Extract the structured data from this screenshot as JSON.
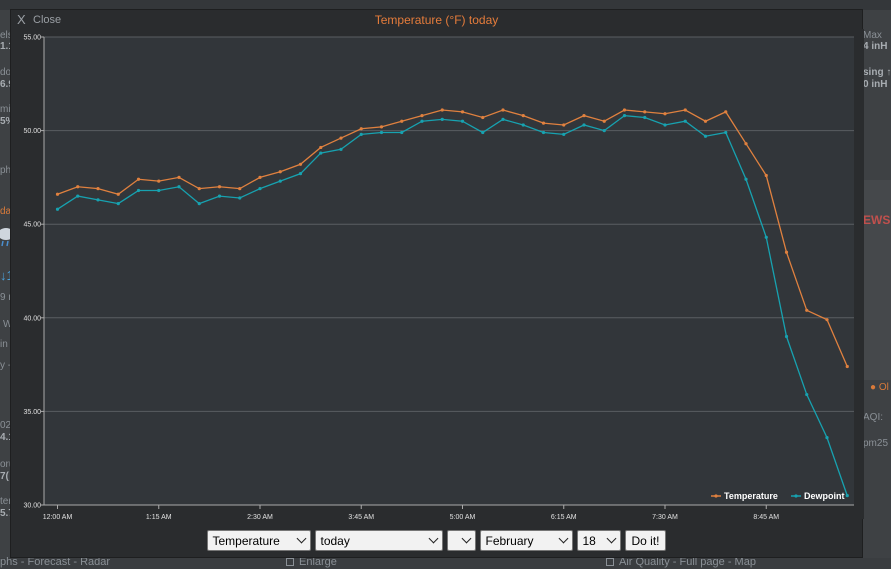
{
  "background": {
    "left_fragments": [
      "elsi",
      "1.1",
      "do",
      "6.9",
      "mi",
      "5%",
      "ph",
      "da",
      "↓1",
      "9 m",
      "W",
      "in 8",
      "y -",
      "02",
      "4.1",
      "oru",
      "7(",
      "ter",
      "5.7"
    ],
    "right_fragments": [
      "Max",
      "4 inH",
      "sing ↑",
      "0 inH",
      "EWS",
      "● Ol",
      "AQI:",
      "pm25"
    ],
    "bottom_links": [
      "phs - Forecast - Radar",
      "Enlarge",
      "Air Quality - Full page - Map"
    ]
  },
  "modal": {
    "close_x": "X",
    "close_label": "Close",
    "title": "Temperature (°F) today"
  },
  "chart_data": {
    "type": "line",
    "title": "Temperature (°F) today",
    "x_tick_labels": [
      "12:00 AM",
      "1:15 AM",
      "2:30 AM",
      "3:45 AM",
      "5:00 AM",
      "6:15 AM",
      "7:30 AM",
      "8:45 AM"
    ],
    "y_tick_labels": [
      "55.00",
      "50.00",
      "45.00",
      "40.00",
      "35.00",
      "30.00"
    ],
    "ylim": [
      30,
      55
    ],
    "x_range_minutes": [
      -10,
      590
    ],
    "x_minutes": [
      0,
      15,
      30,
      45,
      60,
      75,
      90,
      105,
      120,
      135,
      150,
      165,
      180,
      195,
      210,
      225,
      240,
      255,
      270,
      285,
      300,
      315,
      330,
      345,
      360,
      375,
      390,
      405,
      420,
      435,
      450,
      465,
      480,
      495,
      510,
      525,
      540,
      555,
      570,
      585
    ],
    "series": [
      {
        "name": "Temperature",
        "color": "#e0813f",
        "values": [
          46.6,
          47.0,
          46.9,
          46.6,
          47.4,
          47.3,
          47.5,
          46.9,
          47.0,
          46.9,
          47.5,
          47.8,
          48.2,
          49.1,
          49.6,
          50.1,
          50.2,
          50.5,
          50.8,
          51.1,
          51.0,
          50.7,
          51.1,
          50.8,
          50.4,
          50.3,
          50.8,
          50.5,
          51.1,
          51.0,
          50.9,
          51.1,
          50.5,
          51.0,
          49.3,
          47.6,
          43.5,
          40.4,
          39.9,
          37.4
        ]
      },
      {
        "name": "Dewpoint",
        "color": "#17a2b0",
        "values": [
          45.8,
          46.5,
          46.3,
          46.1,
          46.8,
          46.8,
          47.0,
          46.1,
          46.5,
          46.4,
          46.9,
          47.3,
          47.7,
          48.8,
          49.0,
          49.8,
          49.9,
          49.9,
          50.5,
          50.6,
          50.5,
          49.9,
          50.6,
          50.3,
          49.9,
          49.8,
          50.3,
          50.0,
          50.8,
          50.7,
          50.3,
          50.5,
          49.7,
          49.9,
          47.4,
          44.3,
          39.0,
          35.9,
          33.6,
          30.5
        ]
      }
    ],
    "grid": true,
    "legend_position": "bottom-right"
  },
  "controls": {
    "series_select": "Temperature",
    "range_select": "today",
    "blank_select": "",
    "month_select": "February",
    "day_select": "18",
    "submit_label": "Do it!"
  },
  "colors": {
    "title": "#e57c3b",
    "plot_bg": "#32363a",
    "grid": "#5a5e62"
  }
}
